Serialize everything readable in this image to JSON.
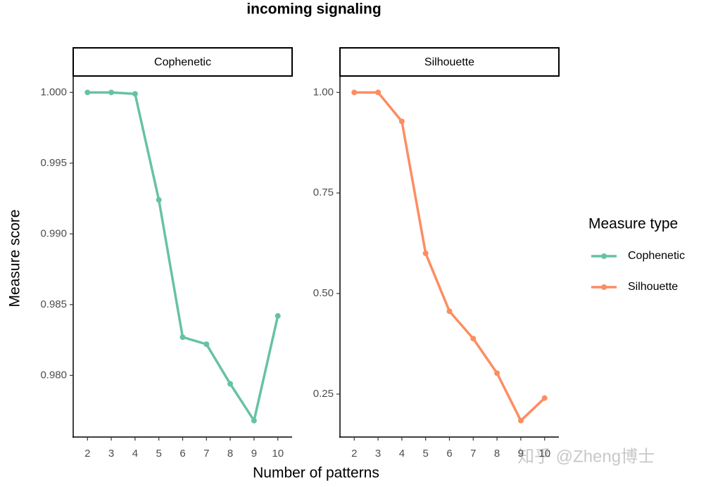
{
  "title": "incoming signaling",
  "xlabel": "Number of patterns",
  "ylabel": "Measure score",
  "legend_title": "Measure type",
  "watermark": "知乎 @Zheng博士",
  "chart_data": [
    {
      "type": "line",
      "title": "Cophenetic",
      "x": [
        2,
        3,
        4,
        5,
        6,
        7,
        8,
        9,
        10
      ],
      "series": [
        {
          "name": "Cophenetic",
          "color": "#66c2a5",
          "values": [
            1.0,
            1.0,
            0.9999,
            0.9924,
            0.9827,
            0.9822,
            0.9794,
            0.9768,
            0.9842
          ]
        }
      ],
      "xlim": [
        1.4,
        10.6
      ],
      "xticks": [
        2,
        3,
        4,
        5,
        6,
        7,
        8,
        9,
        10
      ],
      "ylim": [
        0.97564,
        1.00116
      ],
      "yticks": [
        {
          "value": 0.98,
          "label": "0.980"
        },
        0.985,
        {
          "value": 0.99,
          "label": "0.990"
        },
        0.995,
        {
          "value": 1,
          "label": "1.000"
        }
      ]
    },
    {
      "type": "line",
      "title": "Silhouette",
      "x": [
        2,
        3,
        4,
        5,
        6,
        7,
        8,
        9,
        10
      ],
      "series": [
        {
          "name": "Silhouette",
          "color": "#fc8d62",
          "values": [
            1.0,
            1.0,
            0.928,
            0.6,
            0.456,
            0.388,
            0.302,
            0.184,
            0.24
          ]
        }
      ],
      "xlim": [
        1.4,
        10.6
      ],
      "xticks": [
        2,
        3,
        4,
        5,
        6,
        7,
        8,
        9,
        10
      ],
      "ylim": [
        0.1432,
        1.0408
      ],
      "yticks": [
        0.25,
        {
          "value": 0.5,
          "label": "0.50"
        },
        0.75,
        {
          "value": 1,
          "label": "1.00"
        }
      ]
    }
  ]
}
